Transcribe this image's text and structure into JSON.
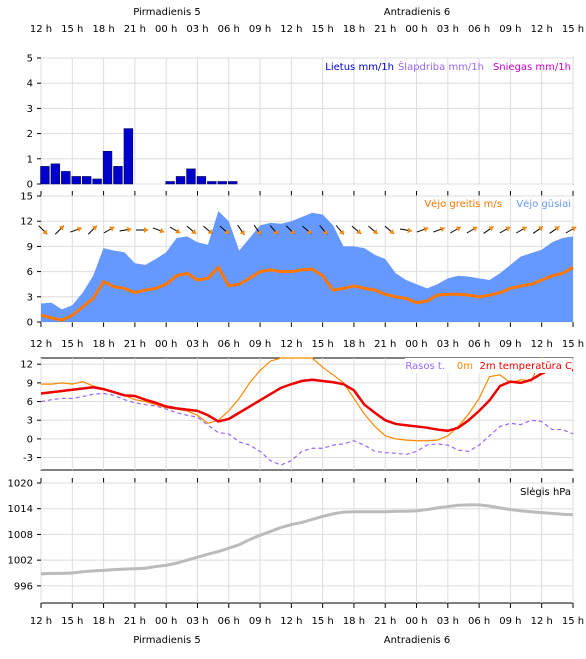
{
  "days": {
    "top": [
      {
        "label": "Pirmadienis 5"
      },
      {
        "label": "Antradienis 6"
      }
    ],
    "bottom": [
      {
        "label": "Pirmadienis 5"
      },
      {
        "label": "Antradienis 6"
      }
    ]
  },
  "time_ticks": [
    "12 h",
    "15 h",
    "18 h",
    "21 h",
    "00 h",
    "03 h",
    "06 h",
    "09 h",
    "12 h",
    "15 h",
    "18 h",
    "21 h",
    "00 h",
    "03 h",
    "06 h",
    "09 h",
    "12 h",
    "15 h"
  ],
  "colors": {
    "rain": "#0000cc",
    "sleet": "#9966ff",
    "snow": "#cc00cc",
    "wind": "#ff7700",
    "gust": "#6699ff",
    "dewpoint": "#9966ff",
    "temp0m": "#ff8800",
    "temp2m": "#ee0000",
    "pressure": "#bbbbbb",
    "arrow": "#ff8800"
  },
  "chart_data": [
    {
      "type": "bar",
      "title": "",
      "legend": [
        "Lietus mm/1h",
        "Šlapdriba mm/1h",
        "Sniegas mm/1h"
      ],
      "ylim": [
        0,
        5
      ],
      "yticks": [
        0,
        1,
        2,
        3,
        4,
        5
      ],
      "x_hours": [
        0,
        1,
        2,
        3,
        4,
        5,
        6,
        7,
        8,
        12,
        13,
        14,
        15,
        16,
        17,
        18
      ],
      "series": [
        {
          "name": "Lietus mm/1h",
          "values": [
            0.7,
            0.8,
            0.5,
            0.3,
            0.3,
            0.2,
            1.3,
            0.7,
            2.2,
            0.1,
            0.3,
            0.6,
            0.3,
            0.1,
            0.1,
            0.1
          ]
        }
      ]
    },
    {
      "type": "area",
      "title": "",
      "legend": [
        "Vėjo greitis m/s",
        "Vėjo gūsiai"
      ],
      "ylim": [
        0,
        15
      ],
      "yticks": [
        0,
        3,
        6,
        9,
        12,
        15
      ],
      "x_hours": [
        0,
        1,
        2,
        3,
        4,
        5,
        6,
        7,
        8,
        9,
        10,
        11,
        12,
        13,
        14,
        15,
        16,
        17,
        18,
        19,
        20,
        21,
        22,
        23,
        24,
        25,
        26,
        27,
        28,
        29,
        30,
        31,
        32,
        33,
        34,
        35,
        36,
        37,
        38,
        39,
        40,
        41,
        42,
        43,
        44,
        45,
        46,
        47,
        48,
        49,
        50,
        51
      ],
      "series": [
        {
          "name": "Vėjo greitis m/s",
          "values": [
            0.8,
            0.5,
            0.2,
            0.8,
            1.8,
            2.8,
            4.8,
            4.2,
            4.0,
            3.5,
            3.8,
            4.0,
            4.5,
            5.5,
            5.8,
            5.0,
            5.2,
            6.5,
            4.3,
            4.5,
            5.2,
            6.0,
            6.2,
            6.0,
            6.0,
            6.2,
            6.3,
            5.5,
            3.8,
            4.0,
            4.3,
            4.0,
            3.8,
            3.3,
            3.0,
            2.8,
            2.3,
            2.5,
            3.2,
            3.3,
            3.3,
            3.2,
            3.0,
            3.2,
            3.5,
            4.0,
            4.3,
            4.5,
            5.0,
            5.5,
            5.8,
            6.5
          ]
        },
        {
          "name": "Vėjo gūsiai",
          "values": [
            2.2,
            2.3,
            1.5,
            2.0,
            3.5,
            5.5,
            8.8,
            8.5,
            8.3,
            7.0,
            6.8,
            7.5,
            8.3,
            10.0,
            10.2,
            9.5,
            9.2,
            13.2,
            12.0,
            8.5,
            10.0,
            11.5,
            11.8,
            11.7,
            12.0,
            12.5,
            13.0,
            12.8,
            11.5,
            9.0,
            9.0,
            8.8,
            8.0,
            7.5,
            5.8,
            5.0,
            4.5,
            4.0,
            4.5,
            5.2,
            5.5,
            5.4,
            5.2,
            5.0,
            5.8,
            6.8,
            7.8,
            8.2,
            8.6,
            9.5,
            10.0,
            10.2
          ]
        }
      ]
    },
    {
      "type": "line",
      "title": "",
      "legend": [
        "Rasos t.",
        "0m",
        "2m temperatūra C"
      ],
      "ylim": [
        -5,
        13
      ],
      "yticks": [
        -3,
        0,
        3,
        6,
        9,
        12
      ],
      "x_hours": [
        0,
        2,
        4,
        6,
        8,
        10,
        12,
        14,
        16,
        18,
        20,
        22,
        24,
        26,
        28,
        30,
        32,
        34,
        36,
        38,
        40,
        42,
        44,
        46,
        48,
        50,
        52,
        54,
        56,
        58,
        60,
        62,
        64,
        66,
        68,
        70,
        72,
        74,
        76,
        78,
        80,
        82,
        84,
        86,
        88,
        90,
        92,
        94,
        96,
        98,
        100,
        102
      ],
      "series": [
        {
          "name": "Rasos t.",
          "values": [
            6.0,
            6.3,
            6.5,
            6.5,
            6.8,
            7.2,
            7.3,
            7.0,
            6.3,
            5.8,
            5.5,
            5.3,
            4.8,
            4.2,
            3.8,
            3.5,
            2.2,
            1.0,
            0.8,
            -0.5,
            -1.0,
            -2.0,
            -3.5,
            -4.2,
            -3.5,
            -2.0,
            -1.5,
            -1.5,
            -1.0,
            -0.8,
            -0.3,
            -1.0,
            -2.0,
            -2.2,
            -2.3,
            -2.5,
            -2.0,
            -1.0,
            -0.8,
            -1.0,
            -1.8,
            -2.0,
            -1.0,
            0.5,
            2.0,
            2.5,
            2.3,
            3.0,
            2.8,
            1.5,
            1.5,
            0.8
          ]
        },
        {
          "name": "0m",
          "values": [
            8.8,
            8.8,
            9.0,
            8.8,
            9.2,
            8.5,
            8.0,
            7.5,
            7.0,
            6.3,
            6.0,
            5.5,
            5.0,
            4.8,
            4.5,
            3.8,
            2.5,
            3.0,
            4.5,
            6.5,
            9.0,
            11.0,
            12.5,
            13.2,
            14.0,
            14.5,
            13.5,
            11.5,
            10.3,
            9.0,
            6.5,
            4.0,
            2.0,
            0.5,
            0.0,
            -0.2,
            -0.3,
            -0.3,
            -0.2,
            0.5,
            2.0,
            4.0,
            6.5,
            10.0,
            10.3,
            9.0,
            9.5,
            9.3,
            13.5,
            12.0,
            11.5,
            11.0
          ]
        },
        {
          "name": "2m temperatūra C",
          "values": [
            7.3,
            7.5,
            7.7,
            7.9,
            8.1,
            8.3,
            8.0,
            7.5,
            7.0,
            6.9,
            6.3,
            5.8,
            5.2,
            4.9,
            4.7,
            4.5,
            3.8,
            2.8,
            3.2,
            4.2,
            5.2,
            6.2,
            7.2,
            8.2,
            8.8,
            9.3,
            9.5,
            9.3,
            9.1,
            8.8,
            7.8,
            5.5,
            4.2,
            3.0,
            2.4,
            2.2,
            2.0,
            1.8,
            1.5,
            1.3,
            1.8,
            3.0,
            4.5,
            6.2,
            8.5,
            9.2,
            9.0,
            9.5,
            10.5,
            11.2,
            11.3,
            11.0
          ]
        }
      ]
    },
    {
      "type": "line",
      "title": "",
      "legend": [
        "Slėgis hPa"
      ],
      "ylim": [
        992,
        1020
      ],
      "yticks": [
        996,
        1002,
        1008,
        1014,
        1020
      ],
      "x_hours": [
        0,
        2,
        4,
        6,
        8,
        10,
        12,
        14,
        16,
        18,
        20,
        22,
        24,
        26,
        28,
        30,
        32,
        34,
        36,
        38,
        40,
        42,
        44,
        46,
        48,
        50,
        52,
        54,
        56,
        58,
        60,
        62,
        64,
        66,
        68,
        70,
        72,
        74,
        76,
        78,
        80,
        82,
        84,
        86,
        88,
        90,
        92,
        94,
        96,
        98,
        100,
        102
      ],
      "series": [
        {
          "name": "Slėgis hPa",
          "values": [
            998.8,
            998.9,
            998.9,
            999.0,
            999.3,
            999.5,
            999.6,
            999.8,
            999.9,
            1000.0,
            1000.1,
            1000.5,
            1000.8,
            1001.3,
            1002.0,
            1002.7,
            1003.4,
            1004.0,
            1004.8,
            1005.6,
            1006.8,
            1007.8,
            1008.7,
            1009.6,
            1010.3,
            1010.8,
            1011.5,
            1012.2,
            1012.8,
            1013.2,
            1013.3,
            1013.3,
            1013.3,
            1013.3,
            1013.4,
            1013.4,
            1013.5,
            1013.8,
            1014.2,
            1014.5,
            1014.8,
            1014.9,
            1014.9,
            1014.6,
            1014.2,
            1013.8,
            1013.5,
            1013.3,
            1013.1,
            1012.9,
            1012.7,
            1012.6
          ]
        }
      ]
    }
  ],
  "wind_arrows_deg": [
    135,
    45,
    70,
    45,
    60,
    80,
    90,
    110,
    120,
    130,
    130,
    130,
    145,
    145,
    140,
    135,
    130,
    140,
    140,
    130,
    130,
    130,
    100,
    70,
    70,
    60,
    60,
    55,
    60,
    60,
    55,
    55,
    60
  ]
}
